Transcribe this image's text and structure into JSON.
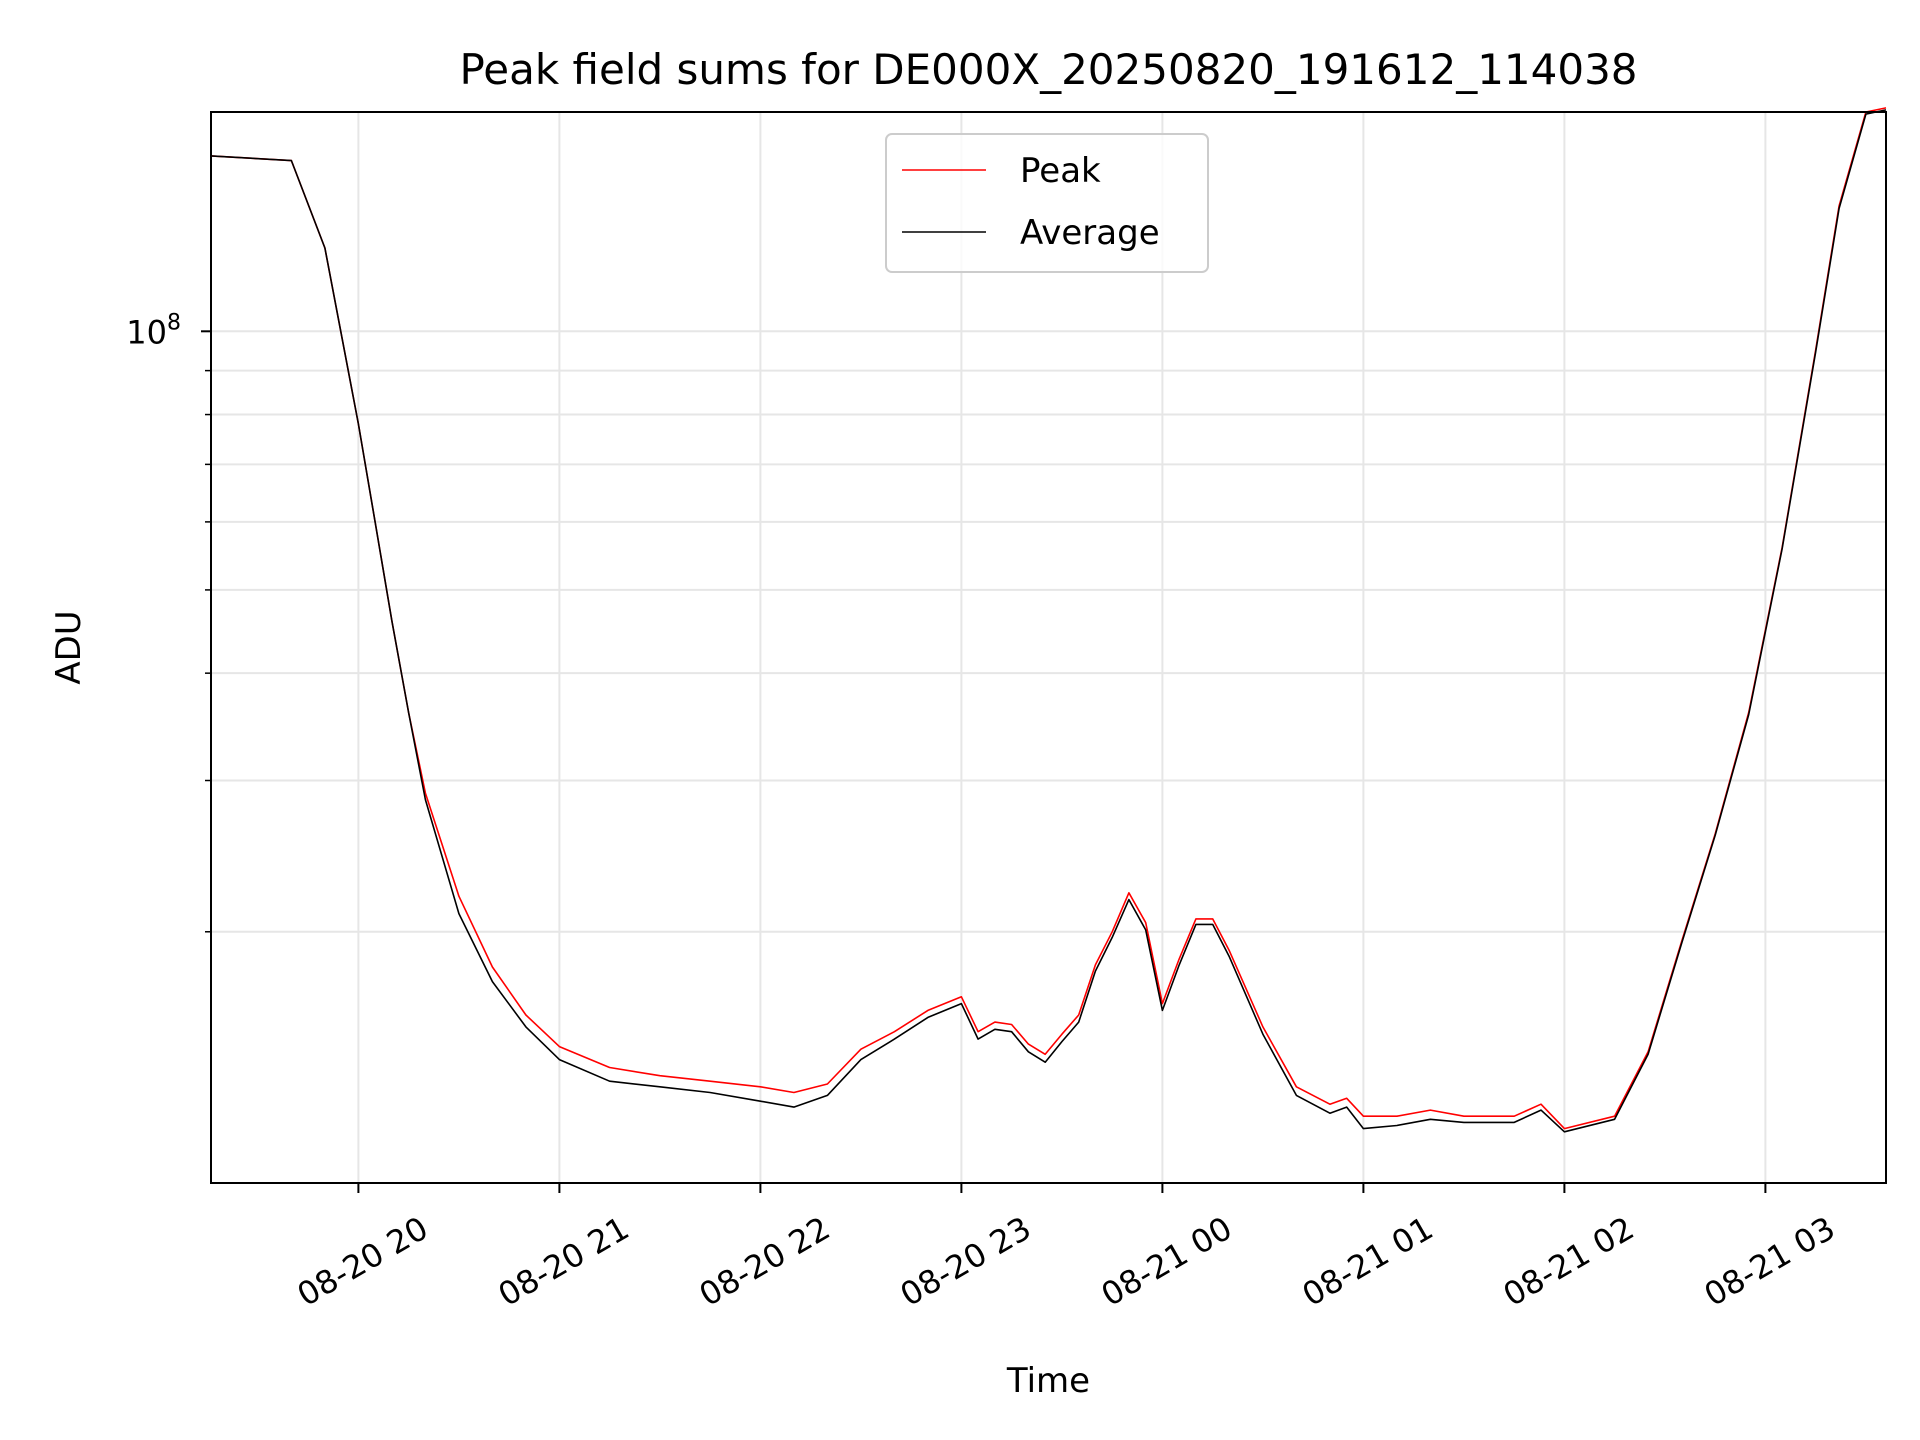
{
  "chart_data": {
    "type": "line",
    "title": "Peak field sums for DE000X_20250820_191612_114038",
    "xlabel": "Time",
    "ylabel": "ADU",
    "y_scale": "log",
    "y_tick_label_base": "10",
    "y_tick_label_exp": "8",
    "y_tick_value": 100000000,
    "ylim": [
      10200000,
      180000000
    ],
    "xlim": [
      "2025-08-20 19:16",
      "2025-08-21 03:36"
    ],
    "x_tick_labels": [
      "08-20 20",
      "08-20 21",
      "08-20 22",
      "08-20 23",
      "08-21 00",
      "08-21 01",
      "08-21 02",
      "08-21 03"
    ],
    "x_tick_values": [
      "2025-08-20 20:00",
      "2025-08-20 21:00",
      "2025-08-20 22:00",
      "2025-08-20 23:00",
      "2025-08-21 00:00",
      "2025-08-21 01:00",
      "2025-08-21 02:00",
      "2025-08-21 03:00"
    ],
    "grid": true,
    "legend_position": "top-center",
    "series": [
      {
        "name": "Peak",
        "color": "#ff0000",
        "points": [
          [
            "2025-08-20 19:16",
            160000000
          ],
          [
            "2025-08-20 19:40",
            158000000
          ],
          [
            "2025-08-20 19:50",
            125000000
          ],
          [
            "2025-08-20 20:00",
            78000000
          ],
          [
            "2025-08-20 20:05",
            60000000
          ],
          [
            "2025-08-20 20:10",
            46000000
          ],
          [
            "2025-08-20 20:15",
            36000000
          ],
          [
            "2025-08-20 20:20",
            29000000
          ],
          [
            "2025-08-20 20:30",
            22000000
          ],
          [
            "2025-08-20 20:40",
            18200000
          ],
          [
            "2025-08-20 20:50",
            16000000
          ],
          [
            "2025-08-20 21:00",
            14700000
          ],
          [
            "2025-08-20 21:15",
            13900000
          ],
          [
            "2025-08-20 21:30",
            13600000
          ],
          [
            "2025-08-20 21:45",
            13400000
          ],
          [
            "2025-08-20 22:00",
            13200000
          ],
          [
            "2025-08-20 22:10",
            13000000
          ],
          [
            "2025-08-20 22:20",
            13300000
          ],
          [
            "2025-08-20 22:30",
            14600000
          ],
          [
            "2025-08-20 22:40",
            15300000
          ],
          [
            "2025-08-20 22:50",
            16200000
          ],
          [
            "2025-08-20 23:00",
            16800000
          ],
          [
            "2025-08-20 23:05",
            15300000
          ],
          [
            "2025-08-20 23:10",
            15700000
          ],
          [
            "2025-08-20 23:15",
            15600000
          ],
          [
            "2025-08-20 23:20",
            14800000
          ],
          [
            "2025-08-20 23:25",
            14400000
          ],
          [
            "2025-08-20 23:30",
            15200000
          ],
          [
            "2025-08-20 23:35",
            16000000
          ],
          [
            "2025-08-20 23:40",
            18300000
          ],
          [
            "2025-08-20 23:45",
            20000000
          ],
          [
            "2025-08-20 23:50",
            22200000
          ],
          [
            "2025-08-20 23:55",
            20500000
          ],
          [
            "2025-08-21 00:00",
            16500000
          ],
          [
            "2025-08-21 00:05",
            18600000
          ],
          [
            "2025-08-21 00:10",
            20700000
          ],
          [
            "2025-08-21 00:15",
            20700000
          ],
          [
            "2025-08-21 00:20",
            19000000
          ],
          [
            "2025-08-21 00:30",
            15500000
          ],
          [
            "2025-08-21 00:40",
            13200000
          ],
          [
            "2025-08-21 00:50",
            12600000
          ],
          [
            "2025-08-21 00:55",
            12800000
          ],
          [
            "2025-08-21 01:00",
            12200000
          ],
          [
            "2025-08-21 01:10",
            12200000
          ],
          [
            "2025-08-21 01:20",
            12400000
          ],
          [
            "2025-08-21 01:30",
            12200000
          ],
          [
            "2025-08-21 01:45",
            12200000
          ],
          [
            "2025-08-21 01:53",
            12600000
          ],
          [
            "2025-08-21 02:00",
            11800000
          ],
          [
            "2025-08-21 02:15",
            12200000
          ],
          [
            "2025-08-21 02:25",
            14500000
          ],
          [
            "2025-08-21 02:35",
            19500000
          ],
          [
            "2025-08-21 02:45",
            26000000
          ],
          [
            "2025-08-21 02:55",
            36000000
          ],
          [
            "2025-08-21 03:05",
            56000000
          ],
          [
            "2025-08-21 03:15",
            95000000
          ],
          [
            "2025-08-21 03:22",
            140000000
          ],
          [
            "2025-08-21 03:30",
            180000000
          ],
          [
            "2025-08-21 03:36",
            182000000
          ]
        ]
      },
      {
        "name": "Average",
        "color": "#000000",
        "points": [
          [
            "2025-08-20 19:16",
            160000000
          ],
          [
            "2025-08-20 19:40",
            158000000
          ],
          [
            "2025-08-20 19:50",
            125000000
          ],
          [
            "2025-08-20 20:00",
            78000000
          ],
          [
            "2025-08-20 20:05",
            60000000
          ],
          [
            "2025-08-20 20:10",
            46000000
          ],
          [
            "2025-08-20 20:15",
            36000000
          ],
          [
            "2025-08-20 20:20",
            28500000
          ],
          [
            "2025-08-20 20:30",
            21000000
          ],
          [
            "2025-08-20 20:40",
            17500000
          ],
          [
            "2025-08-20 20:50",
            15500000
          ],
          [
            "2025-08-20 21:00",
            14200000
          ],
          [
            "2025-08-20 21:15",
            13400000
          ],
          [
            "2025-08-20 21:30",
            13200000
          ],
          [
            "2025-08-20 21:45",
            13000000
          ],
          [
            "2025-08-20 22:00",
            12700000
          ],
          [
            "2025-08-20 22:10",
            12500000
          ],
          [
            "2025-08-20 22:20",
            12900000
          ],
          [
            "2025-08-20 22:30",
            14200000
          ],
          [
            "2025-08-20 22:40",
            15000000
          ],
          [
            "2025-08-20 22:50",
            15900000
          ],
          [
            "2025-08-20 23:00",
            16500000
          ],
          [
            "2025-08-20 23:05",
            15000000
          ],
          [
            "2025-08-20 23:10",
            15400000
          ],
          [
            "2025-08-20 23:15",
            15300000
          ],
          [
            "2025-08-20 23:20",
            14500000
          ],
          [
            "2025-08-20 23:25",
            14100000
          ],
          [
            "2025-08-20 23:30",
            14900000
          ],
          [
            "2025-08-20 23:35",
            15700000
          ],
          [
            "2025-08-20 23:40",
            18000000
          ],
          [
            "2025-08-20 23:45",
            19700000
          ],
          [
            "2025-08-20 23:50",
            21800000
          ],
          [
            "2025-08-20 23:55",
            20100000
          ],
          [
            "2025-08-21 00:00",
            16200000
          ],
          [
            "2025-08-21 00:05",
            18300000
          ],
          [
            "2025-08-21 00:10",
            20400000
          ],
          [
            "2025-08-21 00:15",
            20400000
          ],
          [
            "2025-08-21 00:20",
            18700000
          ],
          [
            "2025-08-21 00:30",
            15200000
          ],
          [
            "2025-08-21 00:40",
            12900000
          ],
          [
            "2025-08-21 00:50",
            12300000
          ],
          [
            "2025-08-21 00:55",
            12500000
          ],
          [
            "2025-08-21 01:00",
            11800000
          ],
          [
            "2025-08-21 01:10",
            11900000
          ],
          [
            "2025-08-21 01:20",
            12100000
          ],
          [
            "2025-08-21 01:30",
            12000000
          ],
          [
            "2025-08-21 01:45",
            12000000
          ],
          [
            "2025-08-21 01:53",
            12400000
          ],
          [
            "2025-08-21 02:00",
            11700000
          ],
          [
            "2025-08-21 02:15",
            12100000
          ],
          [
            "2025-08-21 02:25",
            14400000
          ],
          [
            "2025-08-21 02:35",
            19400000
          ],
          [
            "2025-08-21 02:45",
            25900000
          ],
          [
            "2025-08-21 02:55",
            35800000
          ],
          [
            "2025-08-21 03:05",
            55800000
          ],
          [
            "2025-08-21 03:15",
            94500000
          ],
          [
            "2025-08-21 03:22",
            139000000
          ],
          [
            "2025-08-21 03:30",
            179000000
          ],
          [
            "2025-08-21 03:36",
            181000000
          ]
        ]
      }
    ]
  }
}
